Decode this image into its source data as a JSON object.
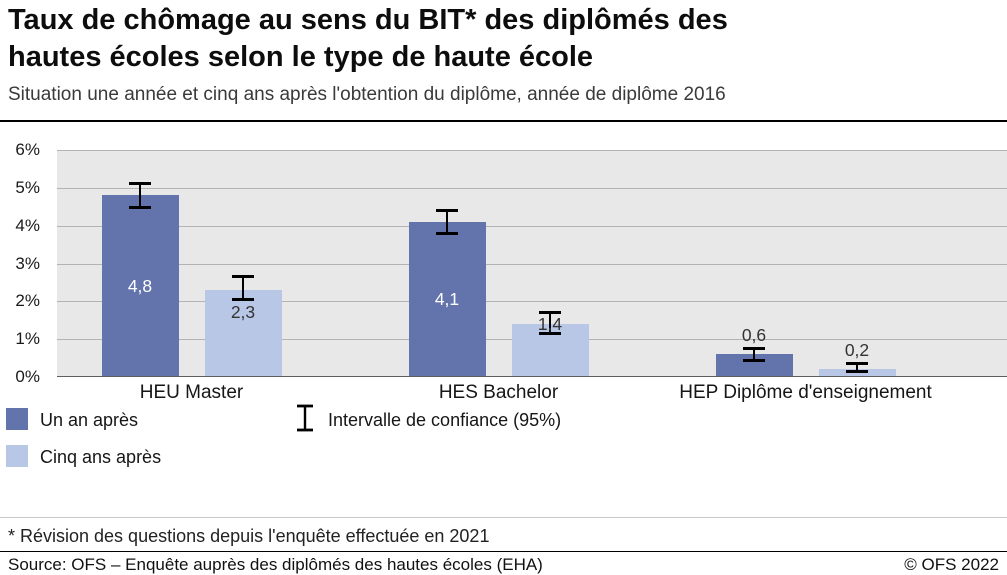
{
  "header": {
    "title_line1": "Taux de chômage au sens du BIT* des diplômés des",
    "title_line2": "hautes écoles selon le type de haute école",
    "subtitle": "Situation une année et cinq ans après l'obtention du diplôme, année de diplôme 2016"
  },
  "chart_data": {
    "type": "bar",
    "categories": [
      "HEU Master",
      "HES Bachelor",
      "HEP Diplôme d'enseignement"
    ],
    "series": [
      {
        "name": "Un an après",
        "color": "#6374ad",
        "values": [
          4.8,
          4.1,
          0.6
        ],
        "value_labels": [
          "4,8",
          "4,1",
          "0,6"
        ],
        "ci_low": [
          4.45,
          3.75,
          0.4
        ],
        "ci_high": [
          5.15,
          4.45,
          0.8
        ]
      },
      {
        "name": "Cinq ans après",
        "color": "#b9c7e6",
        "values": [
          2.3,
          1.4,
          0.2
        ],
        "value_labels": [
          "2,3",
          "1,4",
          "0,2"
        ],
        "ci_low": [
          2.0,
          1.1,
          0.1
        ],
        "ci_high": [
          2.7,
          1.75,
          0.4
        ]
      }
    ],
    "error_bar_legend_label": "Intervalle de confiance (95%)",
    "ylim": [
      0,
      6
    ],
    "yticks": [
      "0%",
      "1%",
      "2%",
      "3%",
      "4%",
      "5%",
      "6%"
    ],
    "grid": "horizontal",
    "legend_position": "bottom-left",
    "plot_background": "#e8e8e8",
    "title": "Taux de chômage au sens du BIT* des diplômés des hautes écoles selon le type de haute école",
    "xlabel": "",
    "ylabel": ""
  },
  "footnote": "* Révision des questions depuis l'enquête effectuée en 2021",
  "footer": {
    "source": "Source: OFS – Enquête auprès des diplômés des hautes écoles (EHA)",
    "copyright": "© OFS 2022"
  }
}
